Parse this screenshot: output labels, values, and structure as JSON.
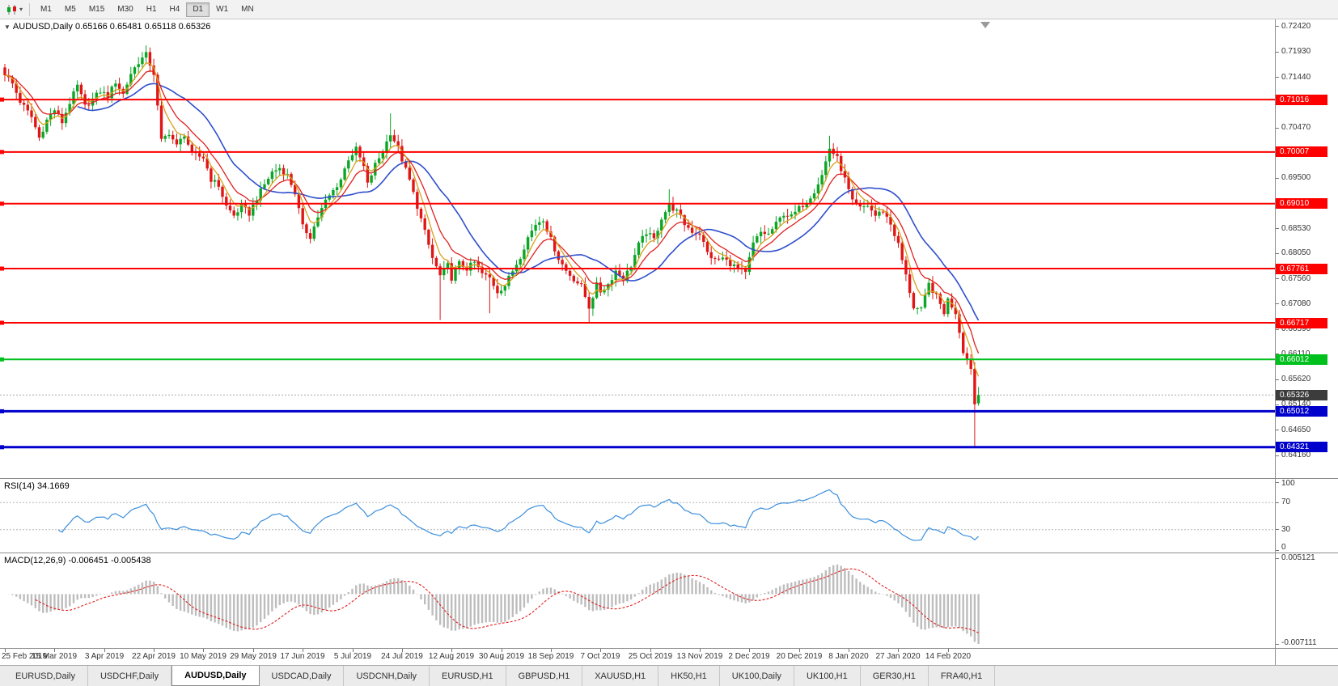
{
  "toolbar": {
    "dropdown_caret": "▾",
    "periods": [
      "M1",
      "M5",
      "M15",
      "M30",
      "H1",
      "H4",
      "D1",
      "W1",
      "MN"
    ],
    "active_period": "D1"
  },
  "chart": {
    "collapse_arrow": "▼",
    "symbol_label": "AUDUSD,Daily",
    "ohlc_text": "0.65166 0.65481 0.65118 0.65326"
  },
  "chart_data": {
    "type": "candlestick",
    "symbol": "AUDUSD",
    "timeframe": "Daily",
    "count": 256,
    "last_candle": {
      "open": 0.65166,
      "high": 0.65481,
      "low": 0.65118,
      "close": 0.65326
    },
    "scale": {
      "p_max": 0.7256,
      "p_min": 0.6371
    },
    "y_axis_ticks": [
      "0.72420",
      "0.71930",
      "0.71440",
      "0.70960",
      "0.70470",
      "0.69500",
      "0.69010",
      "0.68530",
      "0.68050",
      "0.67560",
      "0.67080",
      "0.66590",
      "0.66110",
      "0.65620",
      "0.65140",
      "0.64650",
      "0.64160"
    ],
    "x_labels": [
      "25 Feb 2019",
      "15 Mar 2019",
      "3 Apr 2019",
      "22 Apr 2019",
      "10 May 2019",
      "29 May 2019",
      "17 Jun 2019",
      "5 Jul 2019",
      "24 Jul 2019",
      "12 Aug 2019",
      "30 Aug 2019",
      "18 Sep 2019",
      "7 Oct 2019",
      "25 Oct 2019",
      "13 Nov 2019",
      "2 Dec 2019",
      "20 Dec 2019",
      "8 Jan 2020",
      "27 Jan 2020",
      "14 Feb 2020"
    ],
    "x_label_indices": [
      0,
      13,
      26,
      39,
      52,
      65,
      78,
      91,
      104,
      117,
      130,
      143,
      156,
      169,
      182,
      195,
      208,
      221,
      234,
      247
    ],
    "close_waypoints": [
      [
        0,
        0.7152
      ],
      [
        2,
        0.7132
      ],
      [
        4,
        0.7098
      ],
      [
        7,
        0.7068
      ],
      [
        9,
        0.7028
      ],
      [
        11,
        0.7062
      ],
      [
        13,
        0.7082
      ],
      [
        15,
        0.7058
      ],
      [
        17,
        0.7096
      ],
      [
        19,
        0.7128
      ],
      [
        21,
        0.7088
      ],
      [
        23,
        0.7102
      ],
      [
        25,
        0.7118
      ],
      [
        27,
        0.7108
      ],
      [
        29,
        0.7136
      ],
      [
        31,
        0.7112
      ],
      [
        33,
        0.7152
      ],
      [
        35,
        0.7174
      ],
      [
        37,
        0.7188
      ],
      [
        39,
        0.7152
      ],
      [
        41,
        0.7022
      ],
      [
        43,
        0.7038
      ],
      [
        45,
        0.7012
      ],
      [
        47,
        0.7035
      ],
      [
        49,
        0.6996
      ],
      [
        52,
        0.699
      ],
      [
        54,
        0.6948
      ],
      [
        56,
        0.6936
      ],
      [
        58,
        0.6896
      ],
      [
        60,
        0.6878
      ],
      [
        62,
        0.6896
      ],
      [
        64,
        0.6882
      ],
      [
        66,
        0.6912
      ],
      [
        68,
        0.6938
      ],
      [
        70,
        0.6962
      ],
      [
        72,
        0.697
      ],
      [
        74,
        0.6956
      ],
      [
        76,
        0.6922
      ],
      [
        78,
        0.6856
      ],
      [
        80,
        0.6838
      ],
      [
        82,
        0.6876
      ],
      [
        84,
        0.6906
      ],
      [
        86,
        0.6926
      ],
      [
        88,
        0.6948
      ],
      [
        90,
        0.6988
      ],
      [
        92,
        0.7006
      ],
      [
        94,
        0.6972
      ],
      [
        95,
        0.6938
      ],
      [
        97,
        0.6976
      ],
      [
        99,
        0.7002
      ],
      [
        101,
        0.7038
      ],
      [
        103,
        0.7008
      ],
      [
        104,
        0.6986
      ],
      [
        106,
        0.6946
      ],
      [
        108,
        0.6896
      ],
      [
        110,
        0.6846
      ],
      [
        112,
        0.6796
      ],
      [
        114,
        0.6762
      ],
      [
        116,
        0.6782
      ],
      [
        117,
        0.6758
      ],
      [
        119,
        0.6786
      ],
      [
        121,
        0.6776
      ],
      [
        123,
        0.6788
      ],
      [
        125,
        0.6766
      ],
      [
        127,
        0.6758
      ],
      [
        129,
        0.6732
      ],
      [
        131,
        0.6744
      ],
      [
        133,
        0.6772
      ],
      [
        135,
        0.68
      ],
      [
        137,
        0.6836
      ],
      [
        139,
        0.6862
      ],
      [
        141,
        0.6872
      ],
      [
        143,
        0.6832
      ],
      [
        145,
        0.6796
      ],
      [
        147,
        0.6772
      ],
      [
        149,
        0.6756
      ],
      [
        151,
        0.6742
      ],
      [
        153,
        0.6702
      ],
      [
        155,
        0.6744
      ],
      [
        156,
        0.6732
      ],
      [
        158,
        0.6746
      ],
      [
        160,
        0.6772
      ],
      [
        162,
        0.6756
      ],
      [
        164,
        0.6782
      ],
      [
        166,
        0.6822
      ],
      [
        168,
        0.6846
      ],
      [
        170,
        0.6832
      ],
      [
        172,
        0.6874
      ],
      [
        174,
        0.6898
      ],
      [
        176,
        0.6886
      ],
      [
        178,
        0.6862
      ],
      [
        180,
        0.6848
      ],
      [
        182,
        0.6844
      ],
      [
        184,
        0.6806
      ],
      [
        186,
        0.6792
      ],
      [
        188,
        0.6796
      ],
      [
        190,
        0.6786
      ],
      [
        192,
        0.6776
      ],
      [
        194,
        0.6766
      ],
      [
        196,
        0.6824
      ],
      [
        198,
        0.6846
      ],
      [
        200,
        0.6842
      ],
      [
        202,
        0.6862
      ],
      [
        204,
        0.6882
      ],
      [
        206,
        0.6876
      ],
      [
        208,
        0.6892
      ],
      [
        210,
        0.6906
      ],
      [
        212,
        0.6926
      ],
      [
        214,
        0.6956
      ],
      [
        216,
        0.7008
      ],
      [
        218,
        0.6988
      ],
      [
        220,
        0.6948
      ],
      [
        222,
        0.6904
      ],
      [
        224,
        0.6892
      ],
      [
        226,
        0.6898
      ],
      [
        228,
        0.6878
      ],
      [
        230,
        0.6888
      ],
      [
        232,
        0.6862
      ],
      [
        234,
        0.6822
      ],
      [
        236,
        0.6762
      ],
      [
        238,
        0.6702
      ],
      [
        240,
        0.6696
      ],
      [
        242,
        0.6746
      ],
      [
        244,
        0.6722
      ],
      [
        246,
        0.6692
      ],
      [
        247,
        0.6716
      ],
      [
        249,
        0.6692
      ],
      [
        251,
        0.6618
      ],
      [
        252,
        0.6602
      ],
      [
        253,
        0.6586
      ],
      [
        254,
        0.6515
      ],
      [
        255,
        0.65326
      ]
    ],
    "wick_overrides": [
      {
        "i": 37,
        "h": 0.7206
      },
      {
        "i": 101,
        "h": 0.7075
      },
      {
        "i": 114,
        "l": 0.6677
      },
      {
        "i": 127,
        "l": 0.669
      },
      {
        "i": 153,
        "l": 0.667
      },
      {
        "i": 174,
        "h": 0.6929
      },
      {
        "i": 216,
        "h": 0.7032
      },
      {
        "i": 254,
        "l": 0.6434
      },
      {
        "i": 255,
        "o": 0.65166,
        "h": 0.65481,
        "l": 0.65118,
        "c": 0.65326
      }
    ],
    "price_lines": [
      {
        "price": 0.71016,
        "label": "0.71016",
        "color": "#ff0000",
        "width": 2
      },
      {
        "price": 0.70007,
        "label": "0.70007",
        "color": "#ff0000",
        "width": 2
      },
      {
        "price": 0.6901,
        "label": "0.69010",
        "color": "#ff0000",
        "width": 2
      },
      {
        "price": 0.67761,
        "label": "0.67761",
        "color": "#ff0000",
        "width": 2
      },
      {
        "price": 0.66717,
        "label": "0.66717",
        "color": "#ff0000",
        "width": 2
      },
      {
        "price": 0.66012,
        "label": "0.66012",
        "color": "#00c01e",
        "width": 2
      },
      {
        "price": 0.65012,
        "label": "0.65012",
        "color": "#0000cc",
        "width": 3
      },
      {
        "price": 0.64321,
        "label": "0.64321",
        "color": "#0000cc",
        "width": 3
      }
    ],
    "current_price": {
      "value": 0.65326,
      "label": "0.65326"
    },
    "moving_averages": [
      {
        "name": "ma-fast",
        "method": "ema",
        "period": 5,
        "color": "#d8a01d"
      },
      {
        "name": "ma-mid",
        "method": "ema",
        "period": 10,
        "color": "#e02020"
      },
      {
        "name": "ma-slow",
        "method": "sma",
        "period": 20,
        "color": "#2f4fcd"
      }
    ],
    "rsi": {
      "label": "RSI(14)",
      "period": 14,
      "current": 34.1669,
      "current_label": "34.1669",
      "levels": [
        70,
        30
      ],
      "axis_labels": [
        "100",
        "70",
        "30",
        "0"
      ],
      "color": "#3b8fdc"
    },
    "macd": {
      "label": "MACD(12,26,9)",
      "fast": 12,
      "slow": 26,
      "signal_period": 9,
      "current_macd": -0.006451,
      "current_signal": -0.005438,
      "values_label": "-0.006451 -0.005438",
      "axis_max": 0.005121,
      "axis_min": -0.007111,
      "axis_labels": [
        "0.005121",
        "-0.007111"
      ]
    }
  },
  "tabs": [
    {
      "label": "EURUSD,Daily",
      "active": false
    },
    {
      "label": "USDCHF,Daily",
      "active": false
    },
    {
      "label": "AUDUSD,Daily",
      "active": true
    },
    {
      "label": "USDCAD,Daily",
      "active": false
    },
    {
      "label": "USDCNH,Daily",
      "active": false
    },
    {
      "label": "EURUSD,H1",
      "active": false
    },
    {
      "label": "GBPUSD,H1",
      "active": false
    },
    {
      "label": "XAUUSD,H1",
      "active": false
    },
    {
      "label": "HK50,H1",
      "active": false
    },
    {
      "label": "UK100,Daily",
      "active": false
    },
    {
      "label": "UK100,H1",
      "active": false
    },
    {
      "label": "GER30,H1",
      "active": false
    },
    {
      "label": "FRA40,H1",
      "active": false
    }
  ],
  "colors": {
    "candle_up": "#0aa626",
    "candle_down": "#e01515",
    "ma_fast": "#d8a01d",
    "ma_mid": "#e02020",
    "ma_slow": "#2f4fcd",
    "current_price_box": "#3c3c3c",
    "rsi_line": "#3b8fdc",
    "rsi_level": "#b5b5b5",
    "macd_hist": "#bdbdbd",
    "macd_signal": "#e02020",
    "shift_marker": "#9a9a9a"
  }
}
